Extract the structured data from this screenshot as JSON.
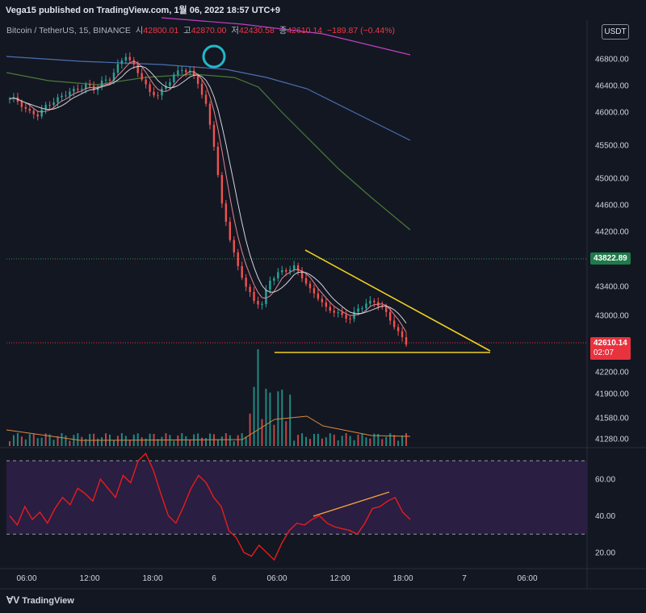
{
  "header": {
    "publisher": "Vega15 published on TradingView.com, 1월 06, 2022 18:57 UTC+9"
  },
  "legend": {
    "symbol": "Bitcoin / TetherUS, 15, BINANCE",
    "open_label": "시",
    "open": "42800.01",
    "high_label": "고",
    "high": "42870.00",
    "low_label": "저",
    "low": "42430.58",
    "close_label": "종",
    "close": "42610.14",
    "change": "−189.87 (−0.44%)"
  },
  "currency_badge": "USDT",
  "price_tags": {
    "green_price": "43822.89",
    "current_price": "42610.14",
    "countdown": "02:07"
  },
  "colors": {
    "background": "#131722",
    "up": "#26a69a",
    "down": "#ef5350",
    "ma_short": "#d1d4dc",
    "ma_mid": "#e08890",
    "ma_green": "#4a7a3a",
    "ma_blue": "#4a6fb0",
    "ma_magenta": "#c040c0",
    "trendline": "#f0d020",
    "rsi_line": "#e81c1c",
    "rsi_band": "#2a1e42",
    "divergence": "#f0a040",
    "highlight_circle": "#22b8c8"
  },
  "footer": {
    "brand": "TradingView"
  },
  "chart_data": [
    {
      "type": "candlestick",
      "title": "Bitcoin / TetherUS, 15, BINANCE",
      "x_ticks": [
        "06:00",
        "12:00",
        "18:00",
        "6",
        "06:00",
        "12:00",
        "18:00",
        "7",
        "06:00"
      ],
      "y_ticks": [
        46800,
        46400,
        46000,
        45500,
        45000,
        44600,
        44200,
        43400,
        43000,
        42200,
        41900,
        41580,
        41280
      ],
      "ylim": [
        41200,
        47200
      ],
      "horizontal_lines": [
        43822.89,
        42610.14
      ],
      "approx_close_path": [
        46200,
        46100,
        46000,
        45950,
        46100,
        46150,
        46250,
        46300,
        46350,
        46400,
        46350,
        46450,
        46500,
        46700,
        46850,
        46700,
        46500,
        46300,
        46250,
        46400,
        46550,
        46650,
        46600,
        46450,
        46100,
        45500,
        44600,
        44100,
        43700,
        43400,
        43200,
        43150,
        43500,
        43600,
        43650,
        43700,
        43550,
        43350,
        43250,
        43100,
        43050,
        43000,
        42950,
        43100,
        43150,
        43200,
        43100,
        42950,
        42750,
        42610
      ],
      "annotations": {
        "triangle_upper": [
          [
            43950,
            42630
          ]
        ],
        "triangle_lower": [
          [
            42650,
            42650
          ]
        ]
      }
    },
    {
      "type": "line",
      "title": "",
      "y_ticks": [
        60.0,
        40.0,
        20.0
      ],
      "ylim": [
        15,
        80
      ],
      "bands": [
        70,
        30
      ],
      "values": [
        40,
        35,
        45,
        38,
        42,
        36,
        44,
        50,
        46,
        55,
        52,
        48,
        60,
        55,
        50,
        62,
        58,
        70,
        74,
        65,
        52,
        40,
        36,
        45,
        55,
        62,
        58,
        50,
        45,
        32,
        28,
        20,
        18,
        24,
        20,
        16,
        25,
        32,
        36,
        35,
        38,
        40,
        36,
        34,
        33,
        32,
        30,
        36,
        44,
        45,
        48,
        50,
        42,
        38
      ]
    }
  ]
}
